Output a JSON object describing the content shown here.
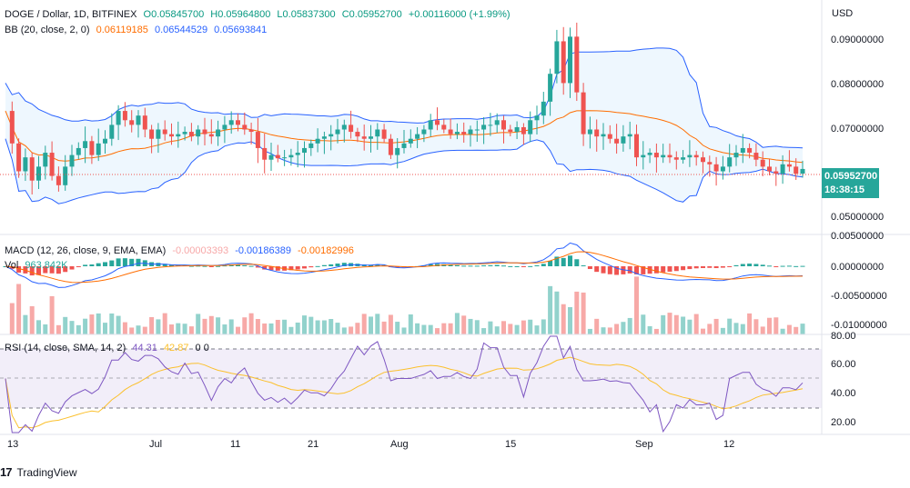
{
  "header": {
    "symbol": "DOGE / Dollar, 1D, BITFINEX",
    "open": "O0.05845700",
    "high": "H0.05964800",
    "low": "L0.05837300",
    "close": "C0.05952700",
    "change": "+0.00116000 (+1.99%)"
  },
  "bb_legend": {
    "title": "BB (20, close, 2, 0)",
    "basis": "0.06119185",
    "upper": "0.06544529",
    "lower": "0.05693841"
  },
  "macd_legend": {
    "title": "MACD (12, 26, close, 9, EMA, EMA)",
    "hist": "-0.00003393",
    "macd": "-0.00186389",
    "signal": "-0.00182996"
  },
  "vol_legend": {
    "title": "Vol",
    "value": "963.842K"
  },
  "rsi_legend": {
    "title": "RSI (14, close, SMA, 14, 2)",
    "rsi": "44.31",
    "sma": "42.87",
    "extra": "0 0"
  },
  "price_axis": {
    "currency": "USD",
    "labels": [
      "0.09000000",
      "0.08000000",
      "0.07000000",
      "0.05000000"
    ],
    "last_price": "0.05952700",
    "countdown": "18:38:15"
  },
  "macd_axis": {
    "labels": [
      "0.00500000",
      "0.00000000",
      "-0.00500000",
      "-0.01000000"
    ]
  },
  "rsi_axis": {
    "labels": [
      "80.00",
      "60.00",
      "40.00",
      "20.00"
    ]
  },
  "time_axis": {
    "labels": [
      "13",
      "Jul",
      "11",
      "21",
      "Aug",
      "15",
      "Sep",
      "12"
    ]
  },
  "branding": {
    "logo": "17",
    "name": "TradingView"
  },
  "colors": {
    "up": "#26a69a",
    "down": "#ef5350",
    "bb_band": "#2962ff",
    "bb_basis": "#ff6d00",
    "macd_line": "#2962ff",
    "signal_line": "#ff6d00",
    "rsi_line": "#7e57c2",
    "rsi_sma": "#fbc02d"
  },
  "chart_data": {
    "type": "candlestick",
    "symbol": "DOGE / Dollar",
    "interval": "1D",
    "exchange": "BITFINEX",
    "price_range": [
      0.045,
      0.095
    ],
    "close_points": [
      0.072,
      0.065,
      0.059,
      0.062,
      0.057,
      0.06,
      0.063,
      0.058,
      0.056,
      0.06,
      0.0625,
      0.064,
      0.0655,
      0.0625,
      0.065,
      0.066,
      0.069,
      0.072,
      0.07,
      0.069,
      0.071,
      0.068,
      0.066,
      0.068,
      0.067,
      0.0665,
      0.067,
      0.0675,
      0.0665,
      0.068,
      0.067,
      0.0665,
      0.068,
      0.069,
      0.07,
      0.069,
      0.068,
      0.0675,
      0.064,
      0.0615,
      0.0625,
      0.0618,
      0.062,
      0.0625,
      0.063,
      0.064,
      0.065,
      0.066,
      0.0665,
      0.067,
      0.068,
      0.069,
      0.0675,
      0.0665,
      0.066,
      0.0665,
      0.068,
      0.066,
      0.0625,
      0.064,
      0.065,
      0.066,
      0.067,
      0.068,
      0.07,
      0.069,
      0.068,
      0.067,
      0.0675,
      0.067,
      0.068,
      0.068,
      0.069,
      0.069,
      0.07,
      0.068,
      0.0675,
      0.0685,
      0.067,
      0.07,
      0.071,
      0.074,
      0.08,
      0.087,
      0.078,
      0.088,
      0.076,
      0.067,
      0.068,
      0.0665,
      0.067,
      0.066,
      0.065,
      0.0665,
      0.067,
      0.062,
      0.0625,
      0.063,
      0.062,
      0.0625,
      0.062,
      0.0615,
      0.062,
      0.0625,
      0.062,
      0.061,
      0.0605,
      0.059,
      0.06,
      0.062,
      0.063,
      0.064,
      0.063,
      0.0615,
      0.06,
      0.059,
      0.0585,
      0.0605,
      0.06,
      0.0585,
      0.0595
    ],
    "rsi_levels": [
      70,
      50,
      30
    ],
    "time_labels": [
      "13",
      "Jul",
      "11",
      "21",
      "Aug",
      "15",
      "Sep",
      "12"
    ]
  }
}
